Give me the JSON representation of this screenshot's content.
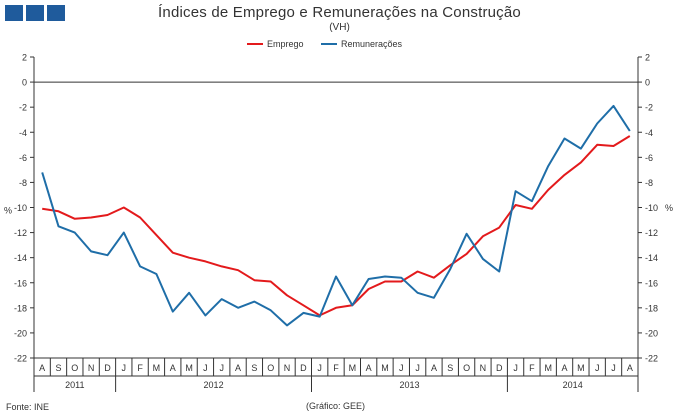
{
  "header": {
    "title": "Índices de Emprego e Remunerações na Construção",
    "subtitle": "(VH)"
  },
  "footer": {
    "source": "Fonte: INE",
    "credit": "(Gráfico: GEE)"
  },
  "colors": {
    "logo": "#1f5b9c",
    "emprego": "#e31a1c",
    "remuneracoes": "#1f6ea8",
    "axis": "#333333"
  },
  "chart_data": {
    "type": "line",
    "title": "Índices de Emprego e Remunerações na Construção",
    "subtitle": "(VH)",
    "ylabel_left": "%",
    "ylabel_right": "%",
    "ylim": [
      -22,
      2
    ],
    "yticks": [
      2,
      0,
      -2,
      -4,
      -6,
      -8,
      -10,
      -12,
      -14,
      -16,
      -18,
      -20,
      -22
    ],
    "grid": false,
    "legend": "top-center",
    "x": [
      "A",
      "S",
      "O",
      "N",
      "D",
      "J",
      "F",
      "M",
      "A",
      "M",
      "J",
      "J",
      "A",
      "S",
      "O",
      "N",
      "D",
      "J",
      "F",
      "M",
      "A",
      "M",
      "J",
      "J",
      "A",
      "S",
      "O",
      "N",
      "D",
      "J",
      "F",
      "M",
      "A",
      "M",
      "J",
      "J",
      "A"
    ],
    "year_groups": [
      {
        "label": "2011",
        "start": 0,
        "count": 5
      },
      {
        "label": "2012",
        "start": 5,
        "count": 12
      },
      {
        "label": "2013",
        "start": 17,
        "count": 12
      },
      {
        "label": "2014",
        "start": 29,
        "count": 8
      }
    ],
    "series": [
      {
        "name": "Emprego",
        "color": "#e31a1c",
        "values": [
          -10.1,
          -10.3,
          -10.9,
          -10.8,
          -10.6,
          -10.0,
          -10.8,
          -12.2,
          -13.6,
          -14.0,
          -14.3,
          -14.7,
          -15.0,
          -15.8,
          -15.9,
          -17.0,
          -17.8,
          -18.6,
          -18.0,
          -17.8,
          -16.5,
          -15.9,
          -15.9,
          -15.1,
          -15.6,
          -14.6,
          -13.7,
          -12.3,
          -11.6,
          -9.8,
          -10.1,
          -8.6,
          -7.4,
          -6.4,
          -5.0,
          -5.1,
          -4.3
        ]
      },
      {
        "name": "Remunerações",
        "color": "#1f6ea8",
        "values": [
          -7.2,
          -11.5,
          -12.0,
          -13.5,
          -13.8,
          -12.0,
          -14.7,
          -15.3,
          -18.3,
          -16.8,
          -18.6,
          -17.3,
          -18.0,
          -17.5,
          -18.2,
          -19.4,
          -18.4,
          -18.7,
          -15.5,
          -17.8,
          -15.7,
          -15.5,
          -15.6,
          -16.8,
          -17.2,
          -14.9,
          -12.1,
          -14.1,
          -15.1,
          -8.7,
          -9.5,
          -6.7,
          -4.5,
          -5.3,
          -3.3,
          -1.9,
          -3.9
        ]
      }
    ]
  }
}
